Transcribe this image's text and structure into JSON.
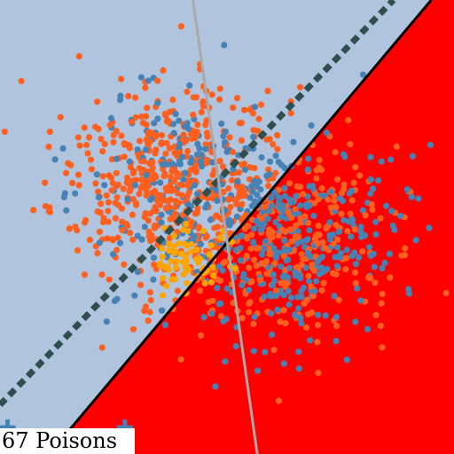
{
  "caption": "67 Poisons",
  "chart_data": {
    "type": "scatter",
    "xlim": [
      -6,
      6
    ],
    "ylim": [
      -6,
      6
    ],
    "grid": false,
    "legend": "none",
    "regions": {
      "negative_color": "#b0c4de",
      "positive_color": "#ff0000"
    },
    "boundaries": [
      {
        "kind": "solid-line",
        "color": "#000000",
        "p1": [
          -4.7,
          -6
        ],
        "p2": [
          5.4,
          6
        ]
      },
      {
        "kind": "dashed-line",
        "color": "#2f4f4f",
        "p1": [
          -6,
          -4.7
        ],
        "p2": [
          4.4,
          6
        ]
      },
      {
        "kind": "thin-line",
        "color": "#a9a9a9",
        "p1": [
          -0.9,
          6
        ],
        "p2": [
          0.8,
          -6
        ]
      }
    ],
    "clusters": [
      {
        "name": "cluster-upper-left",
        "center": [
          -1.6,
          1.2
        ],
        "spread": [
          1.5,
          1.3
        ],
        "count": 650,
        "fraction_orange": 0.78,
        "colors": [
          "#ff5f1f",
          "#4682b4"
        ]
      },
      {
        "name": "cluster-lower-right",
        "center": [
          1.6,
          -0.4
        ],
        "spread": [
          1.5,
          1.3
        ],
        "count": 650,
        "fraction_orange": 0.45,
        "colors": [
          "#ff5f1f",
          "#4682b4"
        ]
      },
      {
        "name": "poison-points",
        "center": [
          -0.9,
          -0.9
        ],
        "spread": [
          0.5,
          0.45
        ],
        "count": 67,
        "fraction_orange": 0,
        "colors": [
          "#ffa500",
          "#ffa500"
        ]
      }
    ],
    "markers": [
      {
        "shape": "plus",
        "x": -5.8,
        "y": -5.3,
        "color": "#4682b4"
      },
      {
        "shape": "plus",
        "x": -2.7,
        "y": -5.3,
        "color": "#4682b4"
      },
      {
        "shape": "plus",
        "x": -5.0,
        "y": -5.8,
        "color": "#4682b4"
      }
    ]
  }
}
